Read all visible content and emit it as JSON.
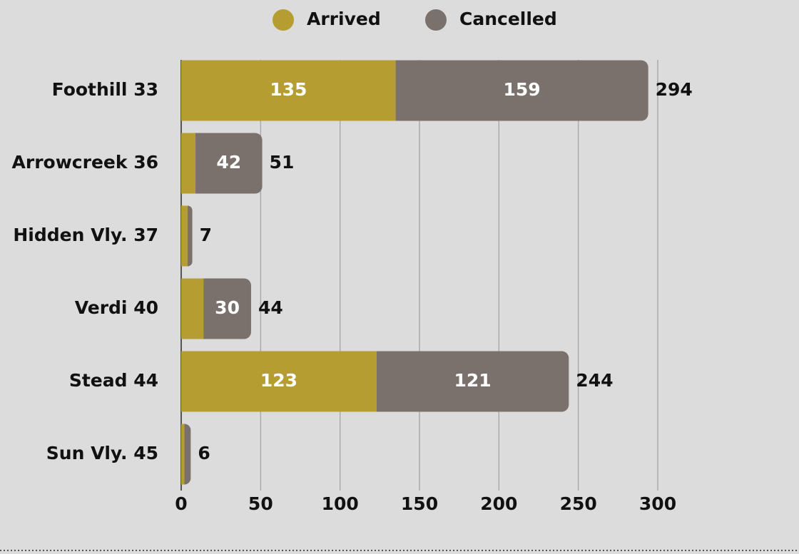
{
  "chart_data": {
    "type": "stacked-barh",
    "categories": [
      "Foothill 33",
      "Arrowcreek 36",
      "Hidden Vly. 37",
      "Verdi 40",
      "Stead 44",
      "Sun Vly. 45"
    ],
    "series": [
      {
        "name": "Arrived",
        "color": "#b59d32",
        "values": [
          135,
          9,
          4,
          14,
          123,
          2
        ]
      },
      {
        "name": "Cancelled",
        "color": "#7a706c",
        "values": [
          159,
          42,
          3,
          30,
          121,
          4
        ]
      }
    ],
    "totals": [
      294,
      51,
      7,
      44,
      244,
      6
    ],
    "xlim": [
      0,
      300
    ],
    "xticks": [
      0,
      50,
      100,
      150,
      200,
      250,
      300
    ],
    "grid": true,
    "legend": "top"
  }
}
